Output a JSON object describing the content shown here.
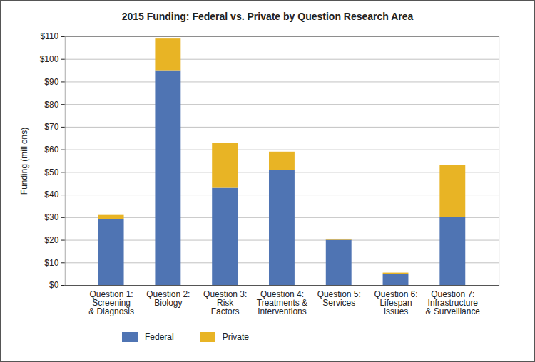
{
  "chart_data": {
    "type": "bar",
    "title": "2015 Funding: Federal vs. Private by Question Research Area",
    "y_label": "Funding (millions)",
    "categories": [
      "Question 1:\nScreening\n& Diagnosis",
      "Question 2:\nBiology",
      "Question 3:\nRisk\nFactors",
      "Question 4:\nTreatments &\nInterventions",
      "Question 5:\nServices",
      "Question 6:\nLifespan\nIssues",
      "Question 7:\nInfrastructure\n& Surveillance"
    ],
    "series": [
      {
        "name": "Federal",
        "color": "#4f74b3",
        "values": [
          29,
          95,
          43,
          51,
          20,
          5,
          30
        ]
      },
      {
        "name": "Private",
        "color": "#e8b425",
        "values": [
          2,
          14,
          20,
          8,
          0.5,
          0.5,
          23
        ]
      }
    ],
    "stacked": true,
    "ylim": [
      0,
      110
    ],
    "yticks": [
      {
        "value": 0,
        "label": "$0"
      },
      {
        "value": 10,
        "label": "$10"
      },
      {
        "value": 20,
        "label": "$20"
      },
      {
        "value": 30,
        "label": "$30"
      },
      {
        "value": 40,
        "label": "$40"
      },
      {
        "value": 50,
        "label": "$50"
      },
      {
        "value": 60,
        "label": "$60"
      },
      {
        "value": 70,
        "label": "$70"
      },
      {
        "value": 80,
        "label": "$80"
      },
      {
        "value": 90,
        "label": "$90"
      },
      {
        "value": 100,
        "label": "$100"
      },
      {
        "value": 110,
        "label": "$110"
      }
    ],
    "grid": true,
    "legend": "bottom-left"
  }
}
